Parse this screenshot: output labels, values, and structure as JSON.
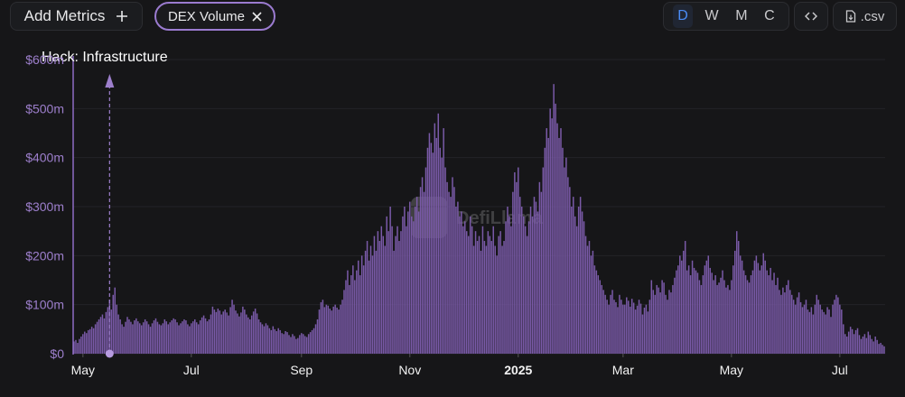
{
  "toolbar": {
    "add_metrics": "Add Metrics",
    "metric_chip": "DEX Volume",
    "intervals": [
      "D",
      "W",
      "M",
      "C"
    ],
    "active_interval": "D",
    "csv": ".csv"
  },
  "chart_data": {
    "type": "bar",
    "watermark": "DefiLlama",
    "color": "#7a5aa8",
    "grid": true,
    "annotations": [
      {
        "label": "Hack: Infrastructure",
        "x": 20
      }
    ],
    "xlim": [
      -0.5,
      456.5
    ],
    "xticks": [
      {
        "value": 5,
        "label": "May"
      },
      {
        "value": 66,
        "label": "Jul"
      },
      {
        "value": 128,
        "label": "Sep"
      },
      {
        "value": 189,
        "label": "Nov"
      },
      {
        "value": 250,
        "label": "2025"
      },
      {
        "value": 309,
        "label": "Mar"
      },
      {
        "value": 370,
        "label": "May"
      },
      {
        "value": 431,
        "label": "Jul"
      }
    ],
    "ylim": [
      0,
      600
    ],
    "yticks": [
      {
        "value": 0,
        "label": "$0"
      },
      {
        "value": 100,
        "label": "$100m"
      },
      {
        "value": 200,
        "label": "$200m"
      },
      {
        "value": 300,
        "label": "$300m"
      },
      {
        "value": 400,
        "label": "$400m"
      },
      {
        "value": 500,
        "label": "$500m"
      },
      {
        "value": 600,
        "label": "$600m"
      }
    ],
    "values": [
      25,
      28,
      22,
      30,
      35,
      40,
      45,
      42,
      48,
      50,
      55,
      52,
      60,
      65,
      70,
      75,
      80,
      72,
      85,
      95,
      110,
      90,
      120,
      135,
      100,
      80,
      70,
      60,
      55,
      65,
      75,
      70,
      65,
      60,
      68,
      72,
      66,
      62,
      58,
      64,
      70,
      66,
      60,
      55,
      62,
      68,
      72,
      65,
      60,
      58,
      62,
      70,
      66,
      60,
      64,
      68,
      72,
      70,
      64,
      58,
      62,
      66,
      70,
      68,
      60,
      56,
      62,
      66,
      70,
      64,
      60,
      68,
      74,
      78,
      72,
      66,
      70,
      80,
      96,
      90,
      85,
      92,
      88,
      80,
      86,
      90,
      84,
      78,
      95,
      110,
      100,
      88,
      82,
      76,
      84,
      96,
      90,
      80,
      74,
      70,
      78,
      86,
      92,
      82,
      70,
      64,
      60,
      56,
      62,
      58,
      52,
      48,
      56,
      50,
      46,
      52,
      48,
      42,
      40,
      46,
      44,
      38,
      34,
      40,
      36,
      30,
      32,
      38,
      42,
      40,
      36,
      34,
      40,
      44,
      48,
      52,
      60,
      70,
      90,
      105,
      110,
      95,
      100,
      98,
      92,
      88,
      96,
      100,
      94,
      90,
      100,
      110,
      130,
      150,
      170,
      140,
      160,
      180,
      150,
      170,
      190,
      160,
      200,
      180,
      210,
      230,
      190,
      220,
      200,
      240,
      210,
      250,
      230,
      260,
      240,
      220,
      280,
      250,
      300,
      260,
      210,
      240,
      260,
      230,
      250,
      280,
      300,
      260,
      290,
      310,
      280,
      270,
      300,
      320,
      290,
      340,
      360,
      330,
      380,
      420,
      450,
      430,
      410,
      470,
      440,
      490,
      420,
      400,
      460,
      380,
      350,
      330,
      320,
      360,
      340,
      300,
      310,
      280,
      290,
      260,
      270,
      250,
      240,
      280,
      260,
      220,
      250,
      230,
      240,
      210,
      260,
      230,
      220,
      250,
      240,
      230,
      260,
      220,
      200,
      240,
      250,
      220,
      230,
      270,
      300,
      280,
      260,
      330,
      370,
      350,
      380,
      320,
      300,
      280,
      260,
      240,
      270,
      300,
      280,
      320,
      310,
      290,
      350,
      330,
      380,
      420,
      460,
      440,
      500,
      480,
      550,
      510,
      470,
      440,
      460,
      420,
      380,
      400,
      360,
      340,
      300,
      320,
      280,
      260,
      300,
      320,
      290,
      270,
      240,
      220,
      230,
      200,
      210,
      180,
      170,
      160,
      150,
      140,
      130,
      120,
      110,
      100,
      120,
      130,
      110,
      105,
      95,
      120,
      110,
      100,
      100,
      115,
      108,
      96,
      112,
      104,
      90,
      98,
      110,
      102,
      80,
      94,
      100,
      86,
      110,
      150,
      130,
      120,
      140,
      135,
      125,
      150,
      145,
      120,
      110,
      130,
      125,
      140,
      155,
      170,
      180,
      200,
      190,
      210,
      230,
      170,
      180,
      160,
      190,
      175,
      170,
      165,
      150,
      140,
      160,
      180,
      190,
      200,
      175,
      165,
      150,
      160,
      140,
      145,
      155,
      170,
      150,
      135,
      140,
      130,
      150,
      180,
      210,
      250,
      230,
      200,
      190,
      170,
      160,
      150,
      145,
      160,
      170,
      190,
      200,
      185,
      170,
      180,
      205,
      190,
      170,
      160,
      175,
      150,
      165,
      140,
      155,
      130,
      120,
      135,
      125,
      140,
      150,
      130,
      120,
      110,
      100,
      115,
      125,
      105,
      95,
      100,
      110,
      90,
      85,
      95,
      80,
      100,
      120,
      110,
      100,
      90,
      85,
      80,
      95,
      90,
      75,
      100,
      110,
      120,
      115,
      100,
      90,
      60,
      40,
      35,
      45,
      55,
      50,
      40,
      48,
      52,
      38,
      30,
      35,
      40,
      32,
      45,
      38,
      30,
      25,
      35,
      28,
      20,
      22,
      18,
      15
    ]
  }
}
